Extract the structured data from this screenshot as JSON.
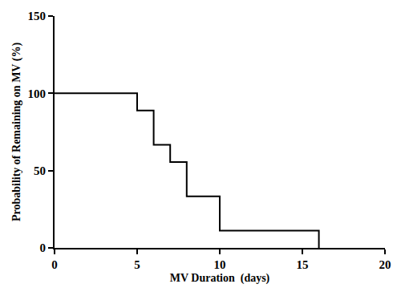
{
  "chart_data": {
    "type": "line",
    "x_label": "MV Duration  (days)",
    "y_label": "Probability of Remaining on MV (%)",
    "x": [
      0,
      5,
      6,
      7,
      8,
      10,
      16
    ],
    "values": [
      100,
      88.9,
      66.7,
      55.6,
      33.3,
      11.1,
      0
    ],
    "color": "#000000",
    "line_style": "step",
    "xlim": [
      0,
      20
    ],
    "xticks": [
      0,
      5,
      10,
      15,
      20
    ],
    "ylim": [
      0,
      150
    ],
    "yticks": [
      0,
      50,
      100,
      150
    ],
    "grid": false
  }
}
